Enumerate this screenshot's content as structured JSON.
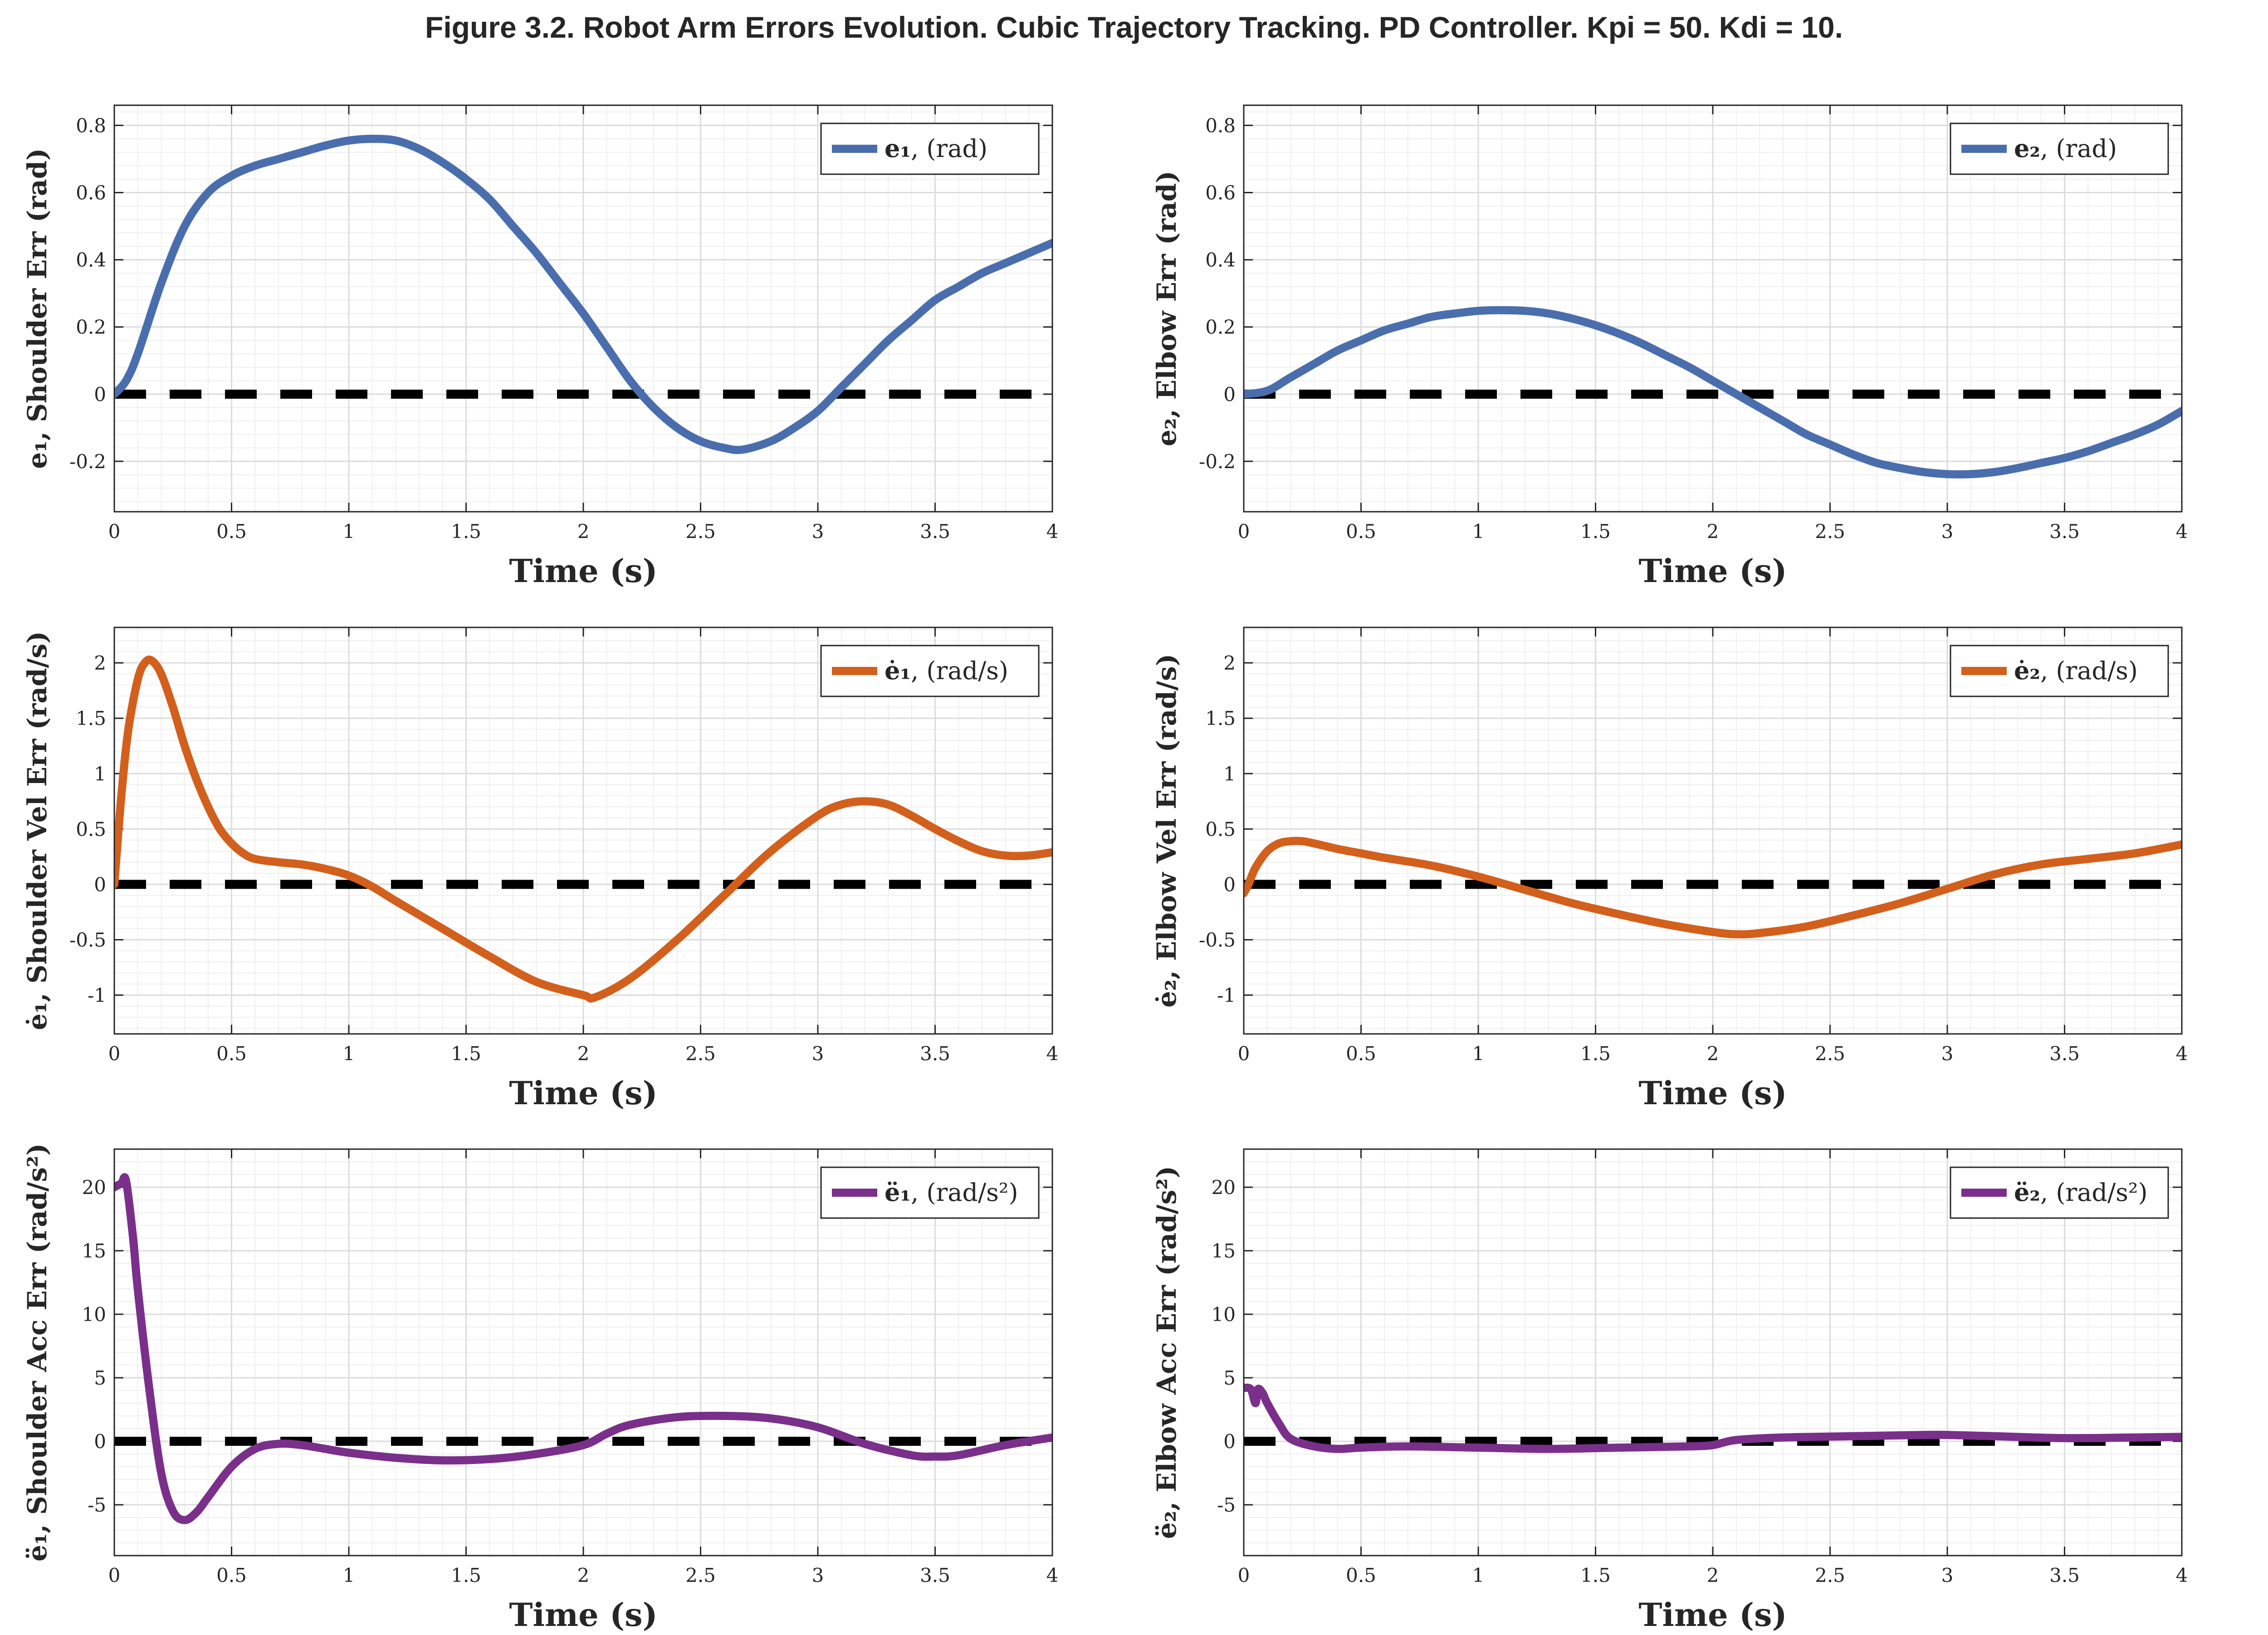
{
  "figure_title": "Figure 3.2. Robot Arm Errors Evolution. Cubic Trajectory Tracking. PD Controller. Kpi = 50. Kdi = 10.",
  "colors": {
    "blue": "#4a6ead",
    "orange": "#d35f1c",
    "purple": "#7a2f8b",
    "reference": "#000000"
  },
  "chart_data": [
    {
      "type": "line",
      "id": "e1",
      "color": "blue",
      "xlabel": "Time (s)",
      "ylabel": "e₁, Shoulder Err (rad)",
      "legend": {
        "symbol": "e₁",
        "unit": ", (rad)",
        "position": "top-right"
      },
      "xlim": [
        0,
        4
      ],
      "ylim": [
        -0.35,
        0.86
      ],
      "xticks": [
        "0",
        "0.5",
        "1",
        "1.5",
        "2",
        "2.5",
        "3",
        "3.5",
        "4"
      ],
      "yticks": [
        "-0.2",
        "0",
        "0.2",
        "0.4",
        "0.6",
        "0.8"
      ],
      "grid": true,
      "reference_line": 0,
      "x": [
        0,
        0.05,
        0.1,
        0.2,
        0.3,
        0.4,
        0.5,
        0.6,
        0.7,
        0.8,
        0.9,
        1.0,
        1.1,
        1.2,
        1.3,
        1.4,
        1.5,
        1.6,
        1.7,
        1.8,
        1.9,
        2.0,
        2.1,
        2.2,
        2.3,
        2.4,
        2.5,
        2.6,
        2.68,
        2.8,
        2.9,
        3.0,
        3.1,
        3.2,
        3.3,
        3.4,
        3.5,
        3.6,
        3.7,
        3.8,
        3.9,
        4.0
      ],
      "y": [
        0,
        0.04,
        0.12,
        0.33,
        0.5,
        0.6,
        0.65,
        0.68,
        0.7,
        0.72,
        0.74,
        0.755,
        0.76,
        0.755,
        0.73,
        0.69,
        0.64,
        0.58,
        0.5,
        0.42,
        0.33,
        0.24,
        0.14,
        0.04,
        -0.04,
        -0.1,
        -0.14,
        -0.16,
        -0.165,
        -0.14,
        -0.1,
        -0.05,
        0.02,
        0.09,
        0.16,
        0.22,
        0.28,
        0.32,
        0.36,
        0.39,
        0.42,
        0.45
      ]
    },
    {
      "type": "line",
      "id": "e2",
      "color": "blue",
      "xlabel": "Time (s)",
      "ylabel": "e₂, Elbow Err (rad)",
      "legend": {
        "symbol": "e₂",
        "unit": ", (rad)",
        "position": "top-right"
      },
      "xlim": [
        0,
        4
      ],
      "ylim": [
        -0.35,
        0.86
      ],
      "xticks": [
        "0",
        "0.5",
        "1",
        "1.5",
        "2",
        "2.5",
        "3",
        "3.5",
        "4"
      ],
      "yticks": [
        "-0.2",
        "0",
        "0.2",
        "0.4",
        "0.6",
        "0.8"
      ],
      "grid": true,
      "reference_line": 0,
      "x": [
        0,
        0.1,
        0.2,
        0.3,
        0.4,
        0.5,
        0.6,
        0.7,
        0.8,
        0.9,
        1.0,
        1.1,
        1.2,
        1.3,
        1.4,
        1.5,
        1.6,
        1.7,
        1.8,
        1.9,
        2.0,
        2.1,
        2.2,
        2.3,
        2.4,
        2.5,
        2.6,
        2.7,
        2.8,
        2.9,
        3.0,
        3.1,
        3.2,
        3.3,
        3.4,
        3.5,
        3.6,
        3.7,
        3.8,
        3.9,
        4.0
      ],
      "y": [
        0,
        0.01,
        0.05,
        0.09,
        0.13,
        0.16,
        0.19,
        0.21,
        0.23,
        0.24,
        0.248,
        0.25,
        0.248,
        0.24,
        0.225,
        0.205,
        0.18,
        0.15,
        0.115,
        0.08,
        0.04,
        0.0,
        -0.04,
        -0.08,
        -0.12,
        -0.15,
        -0.18,
        -0.205,
        -0.22,
        -0.232,
        -0.238,
        -0.238,
        -0.232,
        -0.22,
        -0.205,
        -0.19,
        -0.17,
        -0.145,
        -0.12,
        -0.09,
        -0.05
      ]
    },
    {
      "type": "line",
      "id": "e1dot",
      "color": "orange",
      "xlabel": "Time (s)",
      "ylabel": "ė₁, Shoulder Vel Err (rad/s)",
      "legend": {
        "symbol": "ė₁",
        "unit": ", (rad/s)",
        "position": "top-right"
      },
      "xlim": [
        0,
        4
      ],
      "ylim": [
        -1.35,
        2.32
      ],
      "xticks": [
        "0",
        "0.5",
        "1",
        "1.5",
        "2",
        "2.5",
        "3",
        "3.5",
        "4"
      ],
      "yticks": [
        "-1",
        "-0.5",
        "0",
        "0.5",
        "1",
        "1.5",
        "2"
      ],
      "grid": true,
      "reference_line": 0,
      "x": [
        0,
        0.03,
        0.06,
        0.1,
        0.13,
        0.16,
        0.2,
        0.25,
        0.3,
        0.35,
        0.4,
        0.45,
        0.5,
        0.55,
        0.6,
        0.7,
        0.8,
        0.9,
        1.0,
        1.1,
        1.2,
        1.4,
        1.6,
        1.8,
        2.0,
        2.05,
        2.2,
        2.4,
        2.6,
        2.8,
        3.0,
        3.1,
        3.2,
        3.3,
        3.4,
        3.5,
        3.6,
        3.7,
        3.8,
        3.9,
        4.0
      ],
      "y": [
        0,
        0.8,
        1.4,
        1.85,
        2.0,
        2.02,
        1.9,
        1.6,
        1.25,
        0.95,
        0.7,
        0.5,
        0.37,
        0.28,
        0.23,
        0.2,
        0.18,
        0.14,
        0.08,
        -0.02,
        -0.15,
        -0.4,
        -0.65,
        -0.88,
        -1.0,
        -1.02,
        -0.85,
        -0.5,
        -0.1,
        0.3,
        0.62,
        0.72,
        0.75,
        0.72,
        0.62,
        0.5,
        0.39,
        0.3,
        0.26,
        0.26,
        0.29
      ]
    },
    {
      "type": "line",
      "id": "e2dot",
      "color": "orange",
      "xlabel": "Time (s)",
      "ylabel": "ė₂, Elbow Vel Err (rad/s)",
      "legend": {
        "symbol": "ė₂",
        "unit": ", (rad/s)",
        "position": "top-right"
      },
      "xlim": [
        0,
        4
      ],
      "ylim": [
        -1.35,
        2.32
      ],
      "xticks": [
        "0",
        "0.5",
        "1",
        "1.5",
        "2",
        "2.5",
        "3",
        "3.5",
        "4"
      ],
      "yticks": [
        "-1",
        "-0.5",
        "0",
        "0.5",
        "1",
        "1.5",
        "2"
      ],
      "grid": true,
      "reference_line": 0,
      "x": [
        0,
        0.02,
        0.05,
        0.1,
        0.15,
        0.2,
        0.25,
        0.3,
        0.4,
        0.5,
        0.6,
        0.8,
        1.0,
        1.2,
        1.4,
        1.6,
        1.8,
        2.0,
        2.1,
        2.2,
        2.4,
        2.6,
        2.8,
        3.0,
        3.2,
        3.4,
        3.6,
        3.8,
        4.0
      ],
      "y": [
        -0.08,
        0.0,
        0.15,
        0.3,
        0.37,
        0.39,
        0.39,
        0.37,
        0.32,
        0.28,
        0.24,
        0.17,
        0.07,
        -0.05,
        -0.17,
        -0.27,
        -0.36,
        -0.43,
        -0.45,
        -0.44,
        -0.38,
        -0.28,
        -0.17,
        -0.04,
        0.09,
        0.18,
        0.23,
        0.28,
        0.36
      ]
    },
    {
      "type": "line",
      "id": "e1ddot",
      "color": "purple",
      "xlabel": "Time (s)",
      "ylabel": "ë₁, Shoulder Acc Err (rad/s²)",
      "legend": {
        "symbol": "ë₁",
        "unit": ", (rad/s²)",
        "position": "top-right"
      },
      "xlim": [
        0,
        4
      ],
      "ylim": [
        -9,
        23
      ],
      "xticks": [
        "0",
        "0.5",
        "1",
        "1.5",
        "2",
        "2.5",
        "3",
        "3.5",
        "4"
      ],
      "yticks": [
        "-5",
        "0",
        "5",
        "10",
        "15",
        "20"
      ],
      "grid": true,
      "reference_line": 0,
      "x": [
        0,
        0.03,
        0.05,
        0.08,
        0.1,
        0.15,
        0.2,
        0.25,
        0.3,
        0.35,
        0.4,
        0.5,
        0.6,
        0.7,
        0.8,
        0.9,
        1.0,
        1.2,
        1.4,
        1.6,
        1.8,
        2.0,
        2.1,
        2.2,
        2.4,
        2.6,
        2.8,
        3.0,
        3.2,
        3.4,
        3.5,
        3.6,
        3.8,
        4.0
      ],
      "y": [
        20,
        20.3,
        20.5,
        16,
        12,
        4,
        -2.5,
        -5.5,
        -6.2,
        -5.6,
        -4.4,
        -2.0,
        -0.6,
        -0.2,
        -0.3,
        -0.6,
        -0.9,
        -1.3,
        -1.5,
        -1.4,
        -1.0,
        -0.3,
        0.6,
        1.3,
        1.9,
        2.0,
        1.8,
        1.1,
        -0.2,
        -1.1,
        -1.2,
        -1.1,
        -0.3,
        0.3
      ]
    },
    {
      "type": "line",
      "id": "e2ddot",
      "color": "purple",
      "xlabel": "Time (s)",
      "ylabel": "ë₂, Elbow Acc Err (rad/s²)",
      "legend": {
        "symbol": "ë₂",
        "unit": ", (rad/s²)",
        "position": "top-right"
      },
      "xlim": [
        0,
        4
      ],
      "ylim": [
        -9,
        23
      ],
      "xticks": [
        "0",
        "0.5",
        "1",
        "1.5",
        "2",
        "2.5",
        "3",
        "3.5",
        "4"
      ],
      "yticks": [
        "-5",
        "0",
        "5",
        "10",
        "15",
        "20"
      ],
      "grid": true,
      "reference_line": 0,
      "x": [
        0,
        0.03,
        0.05,
        0.06,
        0.08,
        0.1,
        0.15,
        0.2,
        0.3,
        0.4,
        0.5,
        0.7,
        1.0,
        1.3,
        1.6,
        1.9,
        2.0,
        2.1,
        2.3,
        2.6,
        2.9,
        3.0,
        3.2,
        3.5,
        3.8,
        4.0
      ],
      "y": [
        4.2,
        4.1,
        3.0,
        4.1,
        3.8,
        3.0,
        1.4,
        0.2,
        -0.4,
        -0.6,
        -0.5,
        -0.4,
        -0.5,
        -0.6,
        -0.5,
        -0.4,
        -0.3,
        0.1,
        0.3,
        0.4,
        0.5,
        0.5,
        0.4,
        0.25,
        0.3,
        0.35
      ]
    }
  ]
}
